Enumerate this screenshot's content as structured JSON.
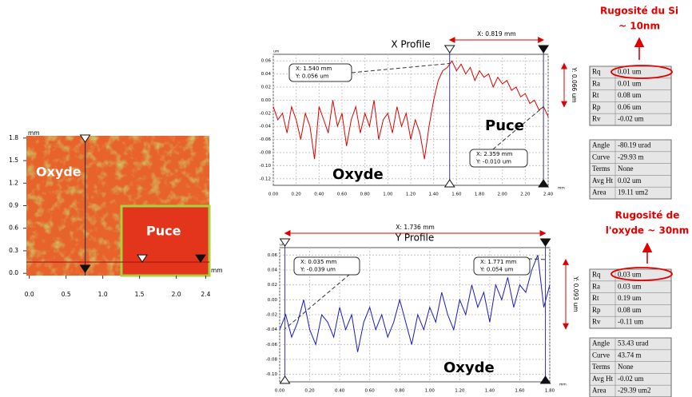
{
  "chart_data": [
    {
      "type": "image",
      "x_unit": "mm",
      "y_unit": "mm",
      "xlim": [
        -0.04,
        2.45
      ],
      "ylim": [
        -0.03,
        1.83
      ],
      "xticks": [
        {
          "value": 0,
          "label": "0.0"
        },
        0.5,
        {
          "value": 1,
          "label": "1.0"
        },
        1.5,
        {
          "value": 2,
          "label": "2.0"
        },
        2.4
      ],
      "yticks": [
        {
          "value": 0,
          "label": "0.0"
        },
        0.3,
        0.6,
        0.9,
        1.2,
        1.5,
        1.8
      ],
      "labels": [
        "Oxyde",
        "Puce"
      ],
      "cursors": [
        0.76,
        0.15
      ]
    },
    {
      "type": "line",
      "title": "X Profile",
      "x_unit": "mm",
      "y_unit": "um",
      "color": "#e00000",
      "grid": true,
      "xlim": [
        0,
        2.4
      ],
      "ylim": [
        -0.13,
        0.07
      ],
      "xticks": [
        {
          "value": 0,
          "label": "0.00"
        },
        {
          "value": 0.2,
          "label": "0.20"
        },
        {
          "value": 0.4,
          "label": "0.40"
        },
        {
          "value": 0.6,
          "label": "0.60"
        },
        {
          "value": 0.8,
          "label": "0.80"
        },
        {
          "value": 1,
          "label": "1.00"
        },
        {
          "value": 1.2,
          "label": "1.20"
        },
        {
          "value": 1.4,
          "label": "1.40"
        },
        {
          "value": 1.6,
          "label": "1.60"
        },
        {
          "value": 1.8,
          "label": "1.80"
        },
        {
          "value": 2,
          "label": "2.00"
        },
        {
          "value": 2.2,
          "label": "2.20"
        },
        {
          "value": 2.4,
          "label": "2.40"
        }
      ],
      "yticks": [
        0.06,
        0.04,
        0.02,
        {
          "value": 0,
          "label": "0.00"
        },
        -0.02,
        -0.04,
        -0.06,
        -0.08,
        {
          "value": -0.1,
          "label": "-0.10"
        },
        -0.12
      ],
      "x": [
        0,
        0.04,
        0.08,
        0.12,
        0.16,
        0.2,
        0.24,
        0.28,
        0.32,
        0.36,
        0.4,
        0.44,
        0.48,
        0.52,
        0.56,
        0.6,
        0.64,
        0.68,
        0.72,
        0.76,
        0.8,
        0.84,
        0.88,
        0.92,
        0.96,
        1,
        1.04,
        1.08,
        1.12,
        1.16,
        1.2,
        1.24,
        1.28,
        1.32,
        1.36,
        1.4,
        1.44,
        1.48,
        1.52,
        1.56,
        1.6,
        1.64,
        1.68,
        1.72,
        1.76,
        1.8,
        1.84,
        1.88,
        1.92,
        1.96,
        2,
        2.04,
        2.08,
        2.12,
        2.16,
        2.2,
        2.24,
        2.28,
        2.32,
        2.36,
        2.4
      ],
      "values": [
        -0.01,
        -0.03,
        -0.02,
        -0.05,
        -0.01,
        -0.03,
        -0.06,
        -0.02,
        -0.04,
        -0.09,
        -0.01,
        -0.03,
        -0.05,
        0,
        -0.04,
        -0.02,
        -0.07,
        -0.03,
        -0.01,
        -0.05,
        -0.02,
        -0.04,
        0,
        -0.06,
        -0.03,
        -0.02,
        -0.05,
        -0.01,
        -0.04,
        -0.02,
        -0.06,
        -0.03,
        -0.05,
        -0.09,
        -0.04,
        0,
        0.03,
        0.045,
        0.05,
        0.06,
        0.045,
        0.055,
        0.04,
        0.05,
        0.03,
        0.045,
        0.035,
        0.04,
        0.02,
        0.035,
        0.025,
        0.03,
        0.015,
        0.02,
        0.005,
        0.01,
        -0.005,
        0,
        -0.015,
        -0.01,
        -0.025
      ],
      "cursors": [
        1.54,
        2.359
      ],
      "cursor_values": [
        0.056,
        -0.01
      ],
      "annotations": [
        [
          "X: 1.540 mm",
          "Y: 0.056 um"
        ],
        [
          "X: 2.359 mm",
          "Y: -0.010 um"
        ]
      ],
      "labels": [
        "Puce",
        "Oxyde"
      ],
      "dimension_x": "X: 0.819 mm",
      "dimension_y": "Y: 0.066 um"
    },
    {
      "type": "line",
      "title": "Y Profile",
      "x_unit": "mm",
      "y_unit": "um",
      "color": "#1a1acc",
      "grid": true,
      "xlim": [
        0,
        1.8
      ],
      "ylim": [
        -0.11,
        0.07
      ],
      "xticks": [
        {
          "value": 0,
          "label": "0.00"
        },
        {
          "value": 0.2,
          "label": "0.20"
        },
        {
          "value": 0.4,
          "label": "0.40"
        },
        {
          "value": 0.6,
          "label": "0.60"
        },
        {
          "value": 0.8,
          "label": "0.80"
        },
        {
          "value": 1,
          "label": "1.00"
        },
        {
          "value": 1.2,
          "label": "1.20"
        },
        {
          "value": 1.4,
          "label": "1.40"
        },
        {
          "value": 1.6,
          "label": "1.60"
        },
        {
          "value": 1.8,
          "label": "1.80"
        }
      ],
      "yticks": [
        0.06,
        0.04,
        0.02,
        {
          "value": 0,
          "label": "0.00"
        },
        -0.02,
        -0.04,
        -0.06,
        -0.08,
        {
          "value": -0.1,
          "label": "-0.10"
        }
      ],
      "x": [
        0,
        0.04,
        0.08,
        0.12,
        0.16,
        0.2,
        0.24,
        0.28,
        0.32,
        0.36,
        0.4,
        0.44,
        0.48,
        0.52,
        0.56,
        0.6,
        0.64,
        0.68,
        0.72,
        0.76,
        0.8,
        0.84,
        0.88,
        0.92,
        0.96,
        1,
        1.04,
        1.08,
        1.12,
        1.16,
        1.2,
        1.24,
        1.28,
        1.32,
        1.36,
        1.4,
        1.44,
        1.48,
        1.52,
        1.56,
        1.6,
        1.64,
        1.68,
        1.72,
        1.76,
        1.8
      ],
      "values": [
        -0.04,
        -0.02,
        -0.05,
        -0.03,
        0,
        -0.04,
        -0.06,
        -0.02,
        -0.03,
        -0.05,
        -0.01,
        -0.04,
        -0.02,
        -0.07,
        -0.03,
        -0.01,
        -0.04,
        -0.02,
        -0.05,
        -0.03,
        0,
        -0.03,
        -0.06,
        -0.02,
        -0.04,
        -0.01,
        -0.03,
        0.01,
        -0.02,
        -0.04,
        0,
        -0.02,
        0.02,
        -0.01,
        0.01,
        -0.03,
        0.02,
        0,
        0.03,
        -0.01,
        0.02,
        0.01,
        0.04,
        0.06,
        -0.01,
        0.02
      ],
      "cursors": [
        0.035,
        1.771
      ],
      "cursor_values": [
        -0.039,
        0.054
      ],
      "annotations": [
        [
          "X: 0.035 mm",
          "Y: -0.039 um"
        ],
        [
          "X: 1.771 mm",
          "Y: 0.054 um"
        ]
      ],
      "labels": [
        "Oxyde"
      ],
      "dimension_x": "X: 1.736 mm",
      "dimension_y": "Y: 0.093 um"
    }
  ],
  "tables": [
    {
      "rows": [
        [
          "Rq",
          "0.01 um"
        ],
        [
          "Ra",
          "0.01 um"
        ],
        [
          "Rt",
          "0.08 um"
        ],
        [
          "Rp",
          "0.06 um"
        ],
        [
          "Rv",
          "-0.02 um"
        ]
      ]
    },
    {
      "rows": [
        [
          "Angle",
          "-80.19 urad"
        ],
        [
          "Curve",
          "-29.93 m"
        ],
        [
          "Terms",
          "None"
        ],
        [
          "Avg Ht",
          "0.02 um"
        ],
        [
          "Area",
          "19.11 um2"
        ]
      ]
    },
    {
      "rows": [
        [
          "Rq",
          "0.03 um"
        ],
        [
          "Ra",
          "0.03 um"
        ],
        [
          "Rt",
          "0.19 um"
        ],
        [
          "Rp",
          "0.08 um"
        ],
        [
          "Rv",
          "-0.11 um"
        ]
      ]
    },
    {
      "rows": [
        [
          "Angle",
          "53.43 urad"
        ],
        [
          "Curve",
          "43.74 m"
        ],
        [
          "Terms",
          "None"
        ],
        [
          "Avg Ht",
          "-0.02 um"
        ],
        [
          "Area",
          "-29.39 um2"
        ]
      ]
    }
  ],
  "notes": [
    [
      "Rugosité du Si",
      "~ 10nm"
    ],
    [
      "Rugosité de",
      "l'oxyde ~ 30nm"
    ]
  ]
}
